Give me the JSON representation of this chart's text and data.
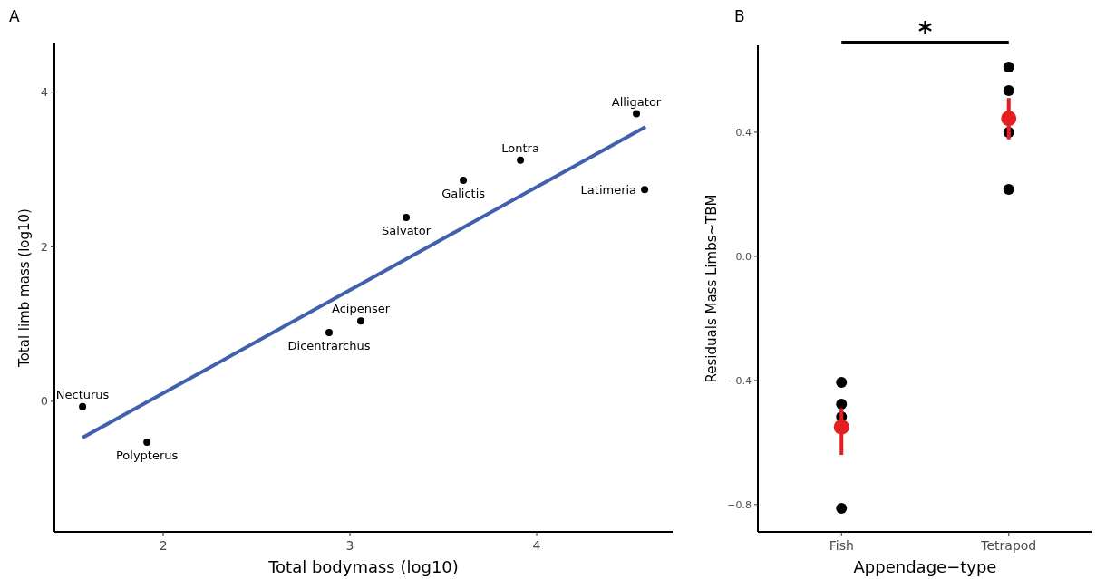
{
  "chart_data": [
    {
      "type": "scatter",
      "title": "A",
      "xlabel": "Total bodymass (log10)",
      "ylabel": "Total  limb mass (log10)",
      "xlim": [
        1.417,
        4.728
      ],
      "xticks": [
        2,
        3,
        4
      ],
      "ylim": [
        -1.69,
        4.63
      ],
      "yticks": [
        0,
        2,
        4
      ],
      "grid": false,
      "marker": "circle",
      "series": [
        {
          "color": "#000000",
          "x": [
            1.568,
            1.913,
            2.888,
            3.058,
            3.301,
            3.607,
            3.913,
            4.534,
            4.578
          ],
          "values": [
            -0.07,
            -0.53,
            0.89,
            1.04,
            2.38,
            2.86,
            3.12,
            3.72,
            2.74
          ]
        },
        {
          "type": "line",
          "marker": "none",
          "color": "#4161ad",
          "x": [
            1.568,
            4.583
          ],
          "values": [
            -0.47,
            3.55
          ]
        }
      ],
      "annotations": [
        {
          "text": "Necturus",
          "x": 1.568,
          "y": -0.07
        },
        {
          "text": "Polypterus",
          "x": 1.913,
          "y": -0.53
        },
        {
          "text": "Dicentrarchus",
          "x": 2.888,
          "y": 0.89
        },
        {
          "text": "Acipenser",
          "x": 3.058,
          "y": 1.04
        },
        {
          "text": "Salvator",
          "x": 3.301,
          "y": 2.38
        },
        {
          "text": "Galictis",
          "x": 3.607,
          "y": 2.86
        },
        {
          "text": "Lontra",
          "x": 3.913,
          "y": 3.12
        },
        {
          "text": "Alligator",
          "x": 4.534,
          "y": 3.72
        },
        {
          "text": "Latimeria",
          "x": 4.578,
          "y": 2.74
        }
      ]
    },
    {
      "type": "scatter",
      "title": "B",
      "xlabel": "Appendage−type",
      "ylabel": "Residuals Mass Limbs~TBM",
      "categories": [
        "Fish",
        "Tetrapod"
      ],
      "ylim": [
        -0.888,
        0.68
      ],
      "yticks": [
        {
          "value": -0.8,
          "label": "−0.8"
        },
        {
          "value": -0.4,
          "label": "−0.4"
        },
        {
          "value": 0,
          "label": "0.0"
        },
        0.4
      ],
      "grid": false,
      "marker": "circle",
      "series": [
        {
          "color": "#000000",
          "x": [
            "Fish",
            "Fish",
            "Fish",
            "Fish",
            "Tetrapod",
            "Tetrapod",
            "Tetrapod",
            "Tetrapod"
          ],
          "values": [
            -0.406,
            -0.476,
            -0.517,
            -0.812,
            0.61,
            0.534,
            0.4,
            0.216
          ]
        },
        {
          "color": "#e41f1f",
          "x": [
            "Fish",
            "Tetrapod"
          ],
          "values": [
            -0.55,
            0.444
          ],
          "errors": [
            [
              -0.64,
              -0.49
            ],
            [
              0.377,
              0.51
            ]
          ]
        }
      ],
      "annotations": [
        "*"
      ]
    }
  ]
}
